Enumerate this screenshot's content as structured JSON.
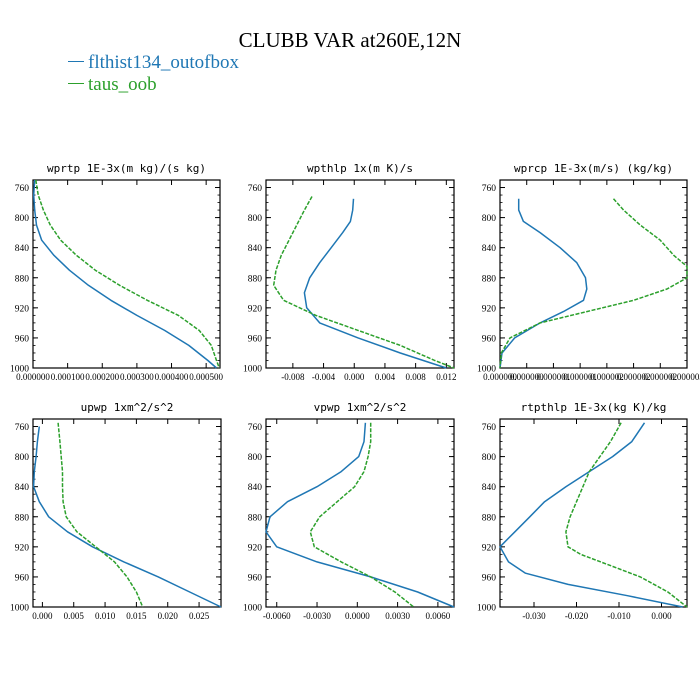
{
  "title": "CLUBB VAR at260E,12N",
  "legend": [
    {
      "label": "flthist134_outofbox",
      "color": "#1f77b4"
    },
    {
      "label": "taus_oob",
      "color": "#2ca02c"
    }
  ],
  "chart_data": [
    {
      "type": "line",
      "title": "wprtp  1E-3x(m kg)/(s kg)",
      "ylim": [
        1000,
        750
      ],
      "yticks": [
        760,
        800,
        840,
        880,
        920,
        960,
        1000
      ],
      "xlim": [
        0,
        0.00054
      ],
      "xticks": [
        0,
        0.0001,
        0.0002,
        0.0003,
        0.0004,
        0.0005
      ],
      "xticklabels": [
        "0.000000",
        "0.000100",
        "0.000200",
        "0.000300",
        "0.000400",
        "0.000500"
      ],
      "series": [
        {
          "name": "flthist134_outofbox",
          "color": "#1f77b4",
          "y": [
            750,
            770,
            790,
            810,
            830,
            850,
            870,
            890,
            910,
            930,
            950,
            970,
            990,
            1000
          ],
          "x": [
            5e-06,
            2e-06,
            5e-06,
            1e-05,
            2.5e-05,
            6e-05,
            0.000105,
            0.00016,
            0.000225,
            0.0003,
            0.00038,
            0.00045,
            0.000505,
            0.00053
          ]
        },
        {
          "name": "taus_oob",
          "color": "#2ca02c",
          "dashed": true,
          "y": [
            750,
            770,
            790,
            810,
            830,
            850,
            870,
            890,
            910,
            930,
            950,
            970,
            990,
            1000
          ],
          "x": [
            8e-06,
            1.5e-05,
            3e-05,
            5e-05,
            8e-05,
            0.000125,
            0.00018,
            0.00025,
            0.00033,
            0.00042,
            0.00048,
            0.000515,
            0.00053,
            0.000538
          ]
        }
      ]
    },
    {
      "type": "line",
      "title": "wpthlp  1x(m K)/s",
      "ylim": [
        1000,
        750
      ],
      "yticks": [
        760,
        800,
        840,
        880,
        920,
        960,
        1000
      ],
      "xlim": [
        -0.0115,
        0.013
      ],
      "xticks": [
        -0.008,
        -0.004,
        0.0,
        0.004,
        0.008,
        0.012
      ],
      "xticklabels": [
        "-0.008",
        "-0.004",
        "0.000",
        "0.004",
        "0.008",
        "0.012"
      ],
      "series": [
        {
          "name": "flthist134_outofbox",
          "color": "#1f77b4",
          "y": [
            775,
            790,
            805,
            820,
            840,
            860,
            880,
            900,
            920,
            940,
            960,
            980,
            1000
          ],
          "x": [
            -0.0001,
            -0.0002,
            -0.0005,
            -0.0015,
            -0.003,
            -0.0045,
            -0.0058,
            -0.0065,
            -0.0062,
            -0.0045,
            0.0005,
            0.006,
            0.012
          ]
        },
        {
          "name": "taus_oob",
          "color": "#2ca02c",
          "dashed": true,
          "y": [
            772,
            790,
            810,
            830,
            850,
            870,
            890,
            910,
            930,
            950,
            970,
            990,
            1000
          ],
          "x": [
            -0.0055,
            -0.0065,
            -0.0075,
            -0.0085,
            -0.0095,
            -0.0102,
            -0.0105,
            -0.0092,
            -0.005,
            0.0005,
            0.006,
            0.0105,
            0.013
          ]
        }
      ]
    },
    {
      "type": "line",
      "title": "wprcp  1E-3x(m/s) (kg/kg)",
      "ylim": [
        1000,
        750
      ],
      "yticks": [
        760,
        800,
        840,
        880,
        920,
        960,
        1000
      ],
      "xlim": [
        0,
        2.8e-06
      ],
      "xticks": [
        0,
        4e-07,
        8e-07,
        1.2e-06,
        1.6e-06,
        2e-06,
        2.4e-06,
        2.8e-06
      ],
      "xticklabels": [
        "0.000000",
        "0.000000",
        "0.000001",
        "0.000001",
        "0.000002",
        "0.000002",
        "0.000002",
        "0.000003"
      ],
      "series": [
        {
          "name": "flthist134_outofbox",
          "color": "#1f77b4",
          "y": [
            775,
            790,
            805,
            820,
            840,
            860,
            880,
            895,
            910,
            925,
            940,
            960,
            980,
            1000
          ],
          "x": [
            2.8e-07,
            2.8e-07,
            3.5e-07,
            6e-07,
            9e-07,
            1.15e-06,
            1.28e-06,
            1.3e-06,
            1.25e-06,
            9.5e-07,
            6e-07,
            2.2e-07,
            3e-08,
            0.0
          ]
        },
        {
          "name": "taus_oob",
          "color": "#2ca02c",
          "dashed": true,
          "y": [
            775,
            790,
            810,
            830,
            850,
            865,
            880,
            895,
            910,
            925,
            940,
            960,
            980,
            1000
          ],
          "x": [
            1.7e-06,
            1.85e-06,
            2.1e-06,
            2.4e-06,
            2.6e-06,
            2.8e-06,
            2.8e-06,
            2.5e-06,
            2e-06,
            1.3e-06,
            6e-07,
            1.5e-07,
            2e-08,
            0.0
          ]
        }
      ]
    },
    {
      "type": "line",
      "title": "upwp  1xm^2/s^2",
      "ylim": [
        1000,
        750
      ],
      "yticks": [
        760,
        800,
        840,
        880,
        920,
        960,
        1000
      ],
      "xlim": [
        -0.0015,
        0.0285
      ],
      "xticks": [
        0.0,
        0.005,
        0.01,
        0.015,
        0.02,
        0.025
      ],
      "xticklabels": [
        "0.000",
        "0.005",
        "0.010",
        "0.015",
        "0.020",
        "0.025"
      ],
      "series": [
        {
          "name": "flthist134_outofbox",
          "color": "#1f77b4",
          "y": [
            760,
            780,
            800,
            820,
            840,
            860,
            880,
            900,
            920,
            940,
            960,
            980,
            1000
          ],
          "x": [
            -0.0005,
            -0.0008,
            -0.001,
            -0.0013,
            -0.0014,
            -0.0005,
            0.001,
            0.004,
            0.008,
            0.013,
            0.0185,
            0.0235,
            0.0285
          ]
        },
        {
          "name": "taus_oob",
          "color": "#2ca02c",
          "dashed": true,
          "y": [
            755,
            780,
            800,
            820,
            840,
            860,
            880,
            900,
            920,
            940,
            960,
            980,
            1000
          ],
          "x": [
            0.0025,
            0.0028,
            0.003,
            0.0032,
            0.0032,
            0.0033,
            0.0038,
            0.0055,
            0.0085,
            0.0115,
            0.0135,
            0.015,
            0.016
          ]
        }
      ]
    },
    {
      "type": "line",
      "title": "vpwp  1xm^2/s^2",
      "ylim": [
        1000,
        750
      ],
      "yticks": [
        760,
        800,
        840,
        880,
        920,
        960,
        1000
      ],
      "xlim": [
        -0.0068,
        0.0072
      ],
      "xticks": [
        -0.006,
        -0.003,
        0.0,
        0.003,
        0.006
      ],
      "xticklabels": [
        "-0.0060",
        "-0.0030",
        "0.0000",
        "0.0030",
        "0.0060"
      ],
      "series": [
        {
          "name": "flthist134_outofbox",
          "color": "#1f77b4",
          "y": [
            755,
            780,
            800,
            820,
            840,
            860,
            880,
            900,
            920,
            940,
            960,
            980,
            1000
          ],
          "x": [
            0.0006,
            0.0005,
            0.0001,
            -0.0012,
            -0.003,
            -0.0052,
            -0.0065,
            -0.0068,
            -0.006,
            -0.003,
            0.001,
            0.0045,
            0.0072
          ]
        },
        {
          "name": "taus_oob",
          "color": "#2ca02c",
          "dashed": true,
          "y": [
            755,
            780,
            800,
            820,
            840,
            860,
            880,
            900,
            920,
            940,
            960,
            980,
            1000
          ],
          "x": [
            0.001,
            0.001,
            0.0008,
            0.0005,
            -0.0002,
            -0.0015,
            -0.0028,
            -0.0035,
            -0.0032,
            -0.0012,
            0.001,
            0.0028,
            0.0042
          ]
        }
      ]
    },
    {
      "type": "line",
      "title": "rtpthlp  1E-3x(kg K)/kg",
      "ylim": [
        1000,
        750
      ],
      "yticks": [
        760,
        800,
        840,
        880,
        920,
        960,
        1000
      ],
      "xlim": [
        -0.038,
        0.006
      ],
      "xticks": [
        -0.03,
        -0.02,
        -0.01,
        0.0
      ],
      "xticklabels": [
        "-0.030",
        "-0.020",
        "-0.010",
        "0.000"
      ],
      "series": [
        {
          "name": "flthist134_outofbox",
          "color": "#1f77b4",
          "y": [
            755,
            780,
            800,
            820,
            840,
            860,
            880,
            900,
            920,
            940,
            955,
            970,
            985,
            1000
          ],
          "x": [
            -0.004,
            -0.007,
            -0.0115,
            -0.017,
            -0.0225,
            -0.0275,
            -0.031,
            -0.0345,
            -0.038,
            -0.036,
            -0.032,
            -0.022,
            -0.008,
            0.005
          ]
        },
        {
          "name": "taus_oob",
          "color": "#2ca02c",
          "dashed": true,
          "y": [
            755,
            780,
            800,
            820,
            840,
            860,
            880,
            900,
            920,
            930,
            945,
            960,
            980,
            1000
          ],
          "x": [
            -0.0095,
            -0.012,
            -0.0145,
            -0.017,
            -0.0185,
            -0.02,
            -0.0215,
            -0.0225,
            -0.022,
            -0.019,
            -0.012,
            -0.005,
            0.0015,
            0.006
          ]
        }
      ]
    }
  ]
}
